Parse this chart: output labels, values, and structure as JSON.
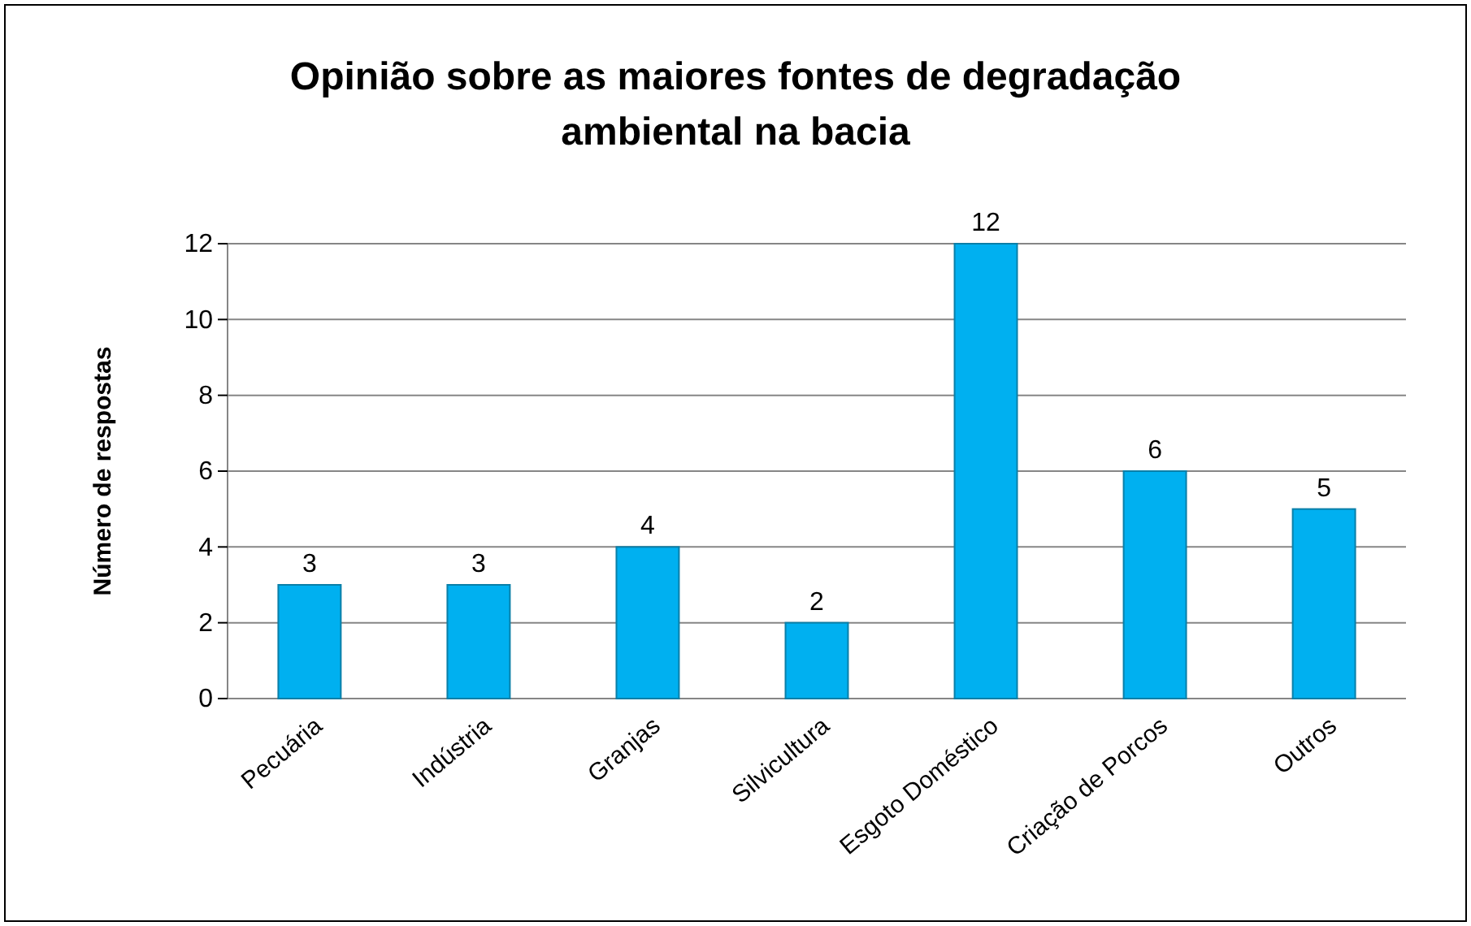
{
  "chart_data": {
    "type": "bar",
    "title": "Opinião sobre as maiores fontes de degradação ambiental na bacia",
    "ylabel": "Número de respostas",
    "categories": [
      "Pecuária",
      "Indústria",
      "Granjas",
      "Silvicultura",
      "Esgoto Doméstico",
      "Criação de Porcos",
      "Outros"
    ],
    "values": [
      3,
      3,
      4,
      2,
      12,
      6,
      5
    ],
    "color": "#00b0f0",
    "ylim": [
      0,
      12
    ],
    "yticks": [
      0,
      2,
      4,
      6,
      8,
      10,
      12
    ],
    "grid": "y",
    "data_labels": true
  }
}
